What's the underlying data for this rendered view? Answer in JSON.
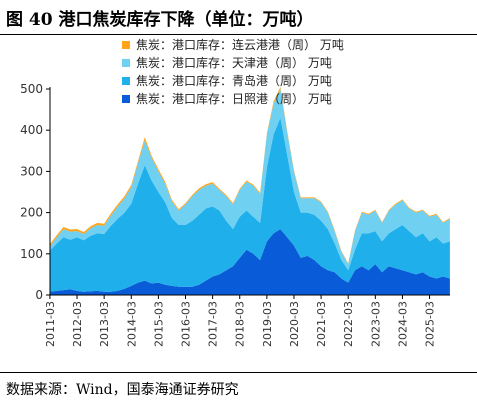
{
  "figure": {
    "title": "图 40 港口焦炭库存下降（单位：万吨）",
    "source": "数据来源：Wind，国泰海通证券研究"
  },
  "chart_data": {
    "type": "area",
    "stacked": true,
    "ylim": [
      0,
      500
    ],
    "yticks": [
      0,
      100,
      200,
      300,
      400,
      500
    ],
    "xlim": [
      2011.17,
      2025.92
    ],
    "xticks": [
      "2011-03",
      "2012-03",
      "2013-03",
      "2014-03",
      "2015-03",
      "2016-03",
      "2017-03",
      "2018-03",
      "2019-03",
      "2020-03",
      "2021-03",
      "2022-03",
      "2023-03",
      "2024-03",
      "2025-03"
    ],
    "legend_position": "top-left",
    "x": [
      "2011-03",
      "2011-06",
      "2011-09",
      "2011-12",
      "2012-03",
      "2012-06",
      "2012-09",
      "2012-12",
      "2013-03",
      "2013-06",
      "2013-09",
      "2013-12",
      "2014-03",
      "2014-06",
      "2014-09",
      "2014-12",
      "2015-03",
      "2015-06",
      "2015-09",
      "2015-12",
      "2016-03",
      "2016-06",
      "2016-09",
      "2016-12",
      "2017-03",
      "2017-06",
      "2017-09",
      "2017-12",
      "2018-03",
      "2018-06",
      "2018-09",
      "2018-12",
      "2019-03",
      "2019-06",
      "2019-09",
      "2019-12",
      "2020-03",
      "2020-06",
      "2020-09",
      "2020-12",
      "2021-03",
      "2021-06",
      "2021-09",
      "2021-12",
      "2022-03",
      "2022-06",
      "2022-09",
      "2022-12",
      "2023-03",
      "2023-06",
      "2023-09",
      "2023-12",
      "2024-03",
      "2024-06",
      "2024-09",
      "2024-12",
      "2025-03",
      "2025-06",
      "2025-09",
      "2025-12"
    ],
    "series": [
      {
        "name": "焦炭：港口库存：日照港（周） 万吨",
        "color": "#0a5bd8",
        "values": [
          8,
          10,
          12,
          14,
          10,
          8,
          9,
          10,
          8,
          8,
          10,
          15,
          22,
          30,
          35,
          28,
          30,
          25,
          22,
          20,
          20,
          20,
          25,
          35,
          45,
          50,
          60,
          70,
          90,
          110,
          100,
          85,
          130,
          150,
          160,
          140,
          120,
          90,
          95,
          85,
          70,
          60,
          55,
          40,
          30,
          60,
          70,
          60,
          75,
          55,
          70,
          65,
          60,
          55,
          50,
          55,
          45,
          40,
          45,
          40
        ]
      },
      {
        "name": "焦炭：港口库存：青岛港（周） 万吨",
        "color": "#1fb0ec",
        "values": [
          100,
          115,
          128,
          120,
          130,
          125,
          135,
          140,
          140,
          160,
          175,
          185,
          200,
          240,
          280,
          250,
          220,
          200,
          165,
          150,
          150,
          160,
          170,
          175,
          170,
          155,
          120,
          90,
          100,
          95,
          90,
          90,
          180,
          240,
          270,
          200,
          130,
          110,
          105,
          110,
          110,
          100,
          70,
          45,
          30,
          50,
          80,
          90,
          80,
          75,
          80,
          95,
          110,
          100,
          90,
          95,
          85,
          100,
          80,
          90
        ]
      },
      {
        "name": "焦炭：港口库存：天津港（周） 万吨",
        "color": "#6fd0f2",
        "values": [
          10,
          15,
          20,
          20,
          15,
          15,
          18,
          20,
          20,
          25,
          30,
          35,
          40,
          50,
          60,
          55,
          50,
          45,
          40,
          35,
          50,
          60,
          60,
          55,
          55,
          50,
          60,
          60,
          65,
          70,
          75,
          70,
          80,
          75,
          70,
          55,
          50,
          35,
          35,
          40,
          45,
          40,
          30,
          20,
          15,
          45,
          50,
          45,
          50,
          45,
          55,
          60,
          60,
          55,
          60,
          55,
          60,
          55,
          50,
          55
        ]
      },
      {
        "name": "焦炭：港口库存：连云港港（周） 万吨",
        "color": "#ffa41a",
        "values": [
          5,
          5,
          5,
          5,
          5,
          5,
          5,
          5,
          5,
          5,
          5,
          5,
          5,
          5,
          8,
          5,
          5,
          5,
          4,
          3,
          3,
          3,
          4,
          4,
          4,
          3,
          3,
          3,
          3,
          3,
          3,
          3,
          3,
          5,
          5,
          3,
          3,
          2,
          2,
          2,
          2,
          2,
          2,
          2,
          2,
          2,
          2,
          2,
          2,
          2,
          2,
          2,
          2,
          2,
          2,
          2,
          2,
          2,
          2,
          2
        ]
      }
    ]
  }
}
